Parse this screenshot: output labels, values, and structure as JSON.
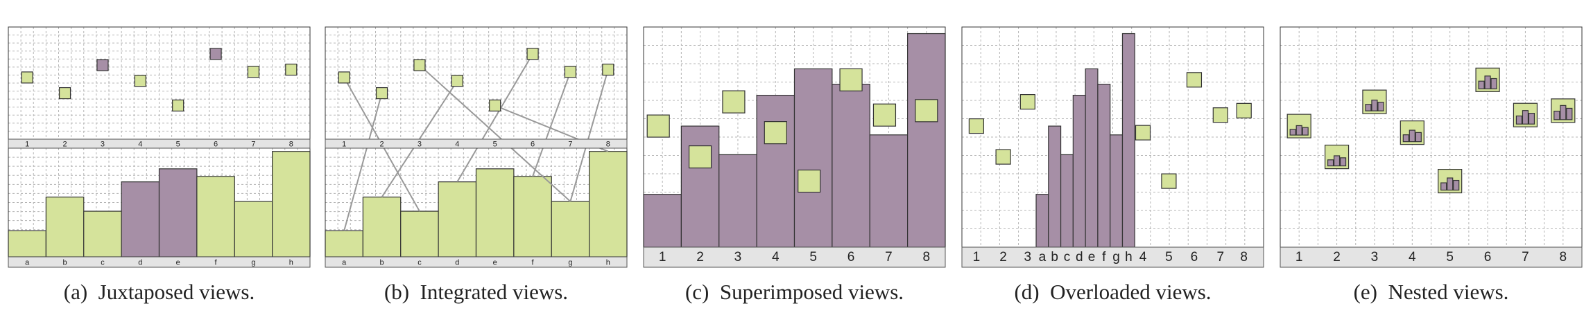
{
  "panels": [
    {
      "caption": "(a)  Juxtaposed views.",
      "top_labels": [
        "1",
        "2",
        "3",
        "4",
        "5",
        "6",
        "7",
        "8"
      ],
      "bottom_labels": [
        "a",
        "b",
        "c",
        "d",
        "e",
        "f",
        "g",
        "h"
      ]
    },
    {
      "caption": "(b)  Integrated views.",
      "top_labels": [
        "1",
        "2",
        "3",
        "4",
        "5",
        "6",
        "7",
        "8"
      ],
      "bottom_labels": [
        "a",
        "b",
        "c",
        "d",
        "e",
        "f",
        "g",
        "h"
      ]
    },
    {
      "caption": "(c)  Superimposed views.",
      "labels": [
        "1",
        "2",
        "3",
        "4",
        "5",
        "6",
        "7",
        "8"
      ]
    },
    {
      "caption": "(d)  Overloaded views.",
      "labels": [
        "1",
        "2",
        "3",
        "a",
        "b",
        "c",
        "d",
        "e",
        "f",
        "g",
        "h",
        "4",
        "5",
        "6",
        "7",
        "8"
      ]
    },
    {
      "caption": "(e)  Nested views.",
      "labels": [
        "1",
        "2",
        "3",
        "4",
        "5",
        "6",
        "7",
        "8"
      ]
    }
  ]
}
